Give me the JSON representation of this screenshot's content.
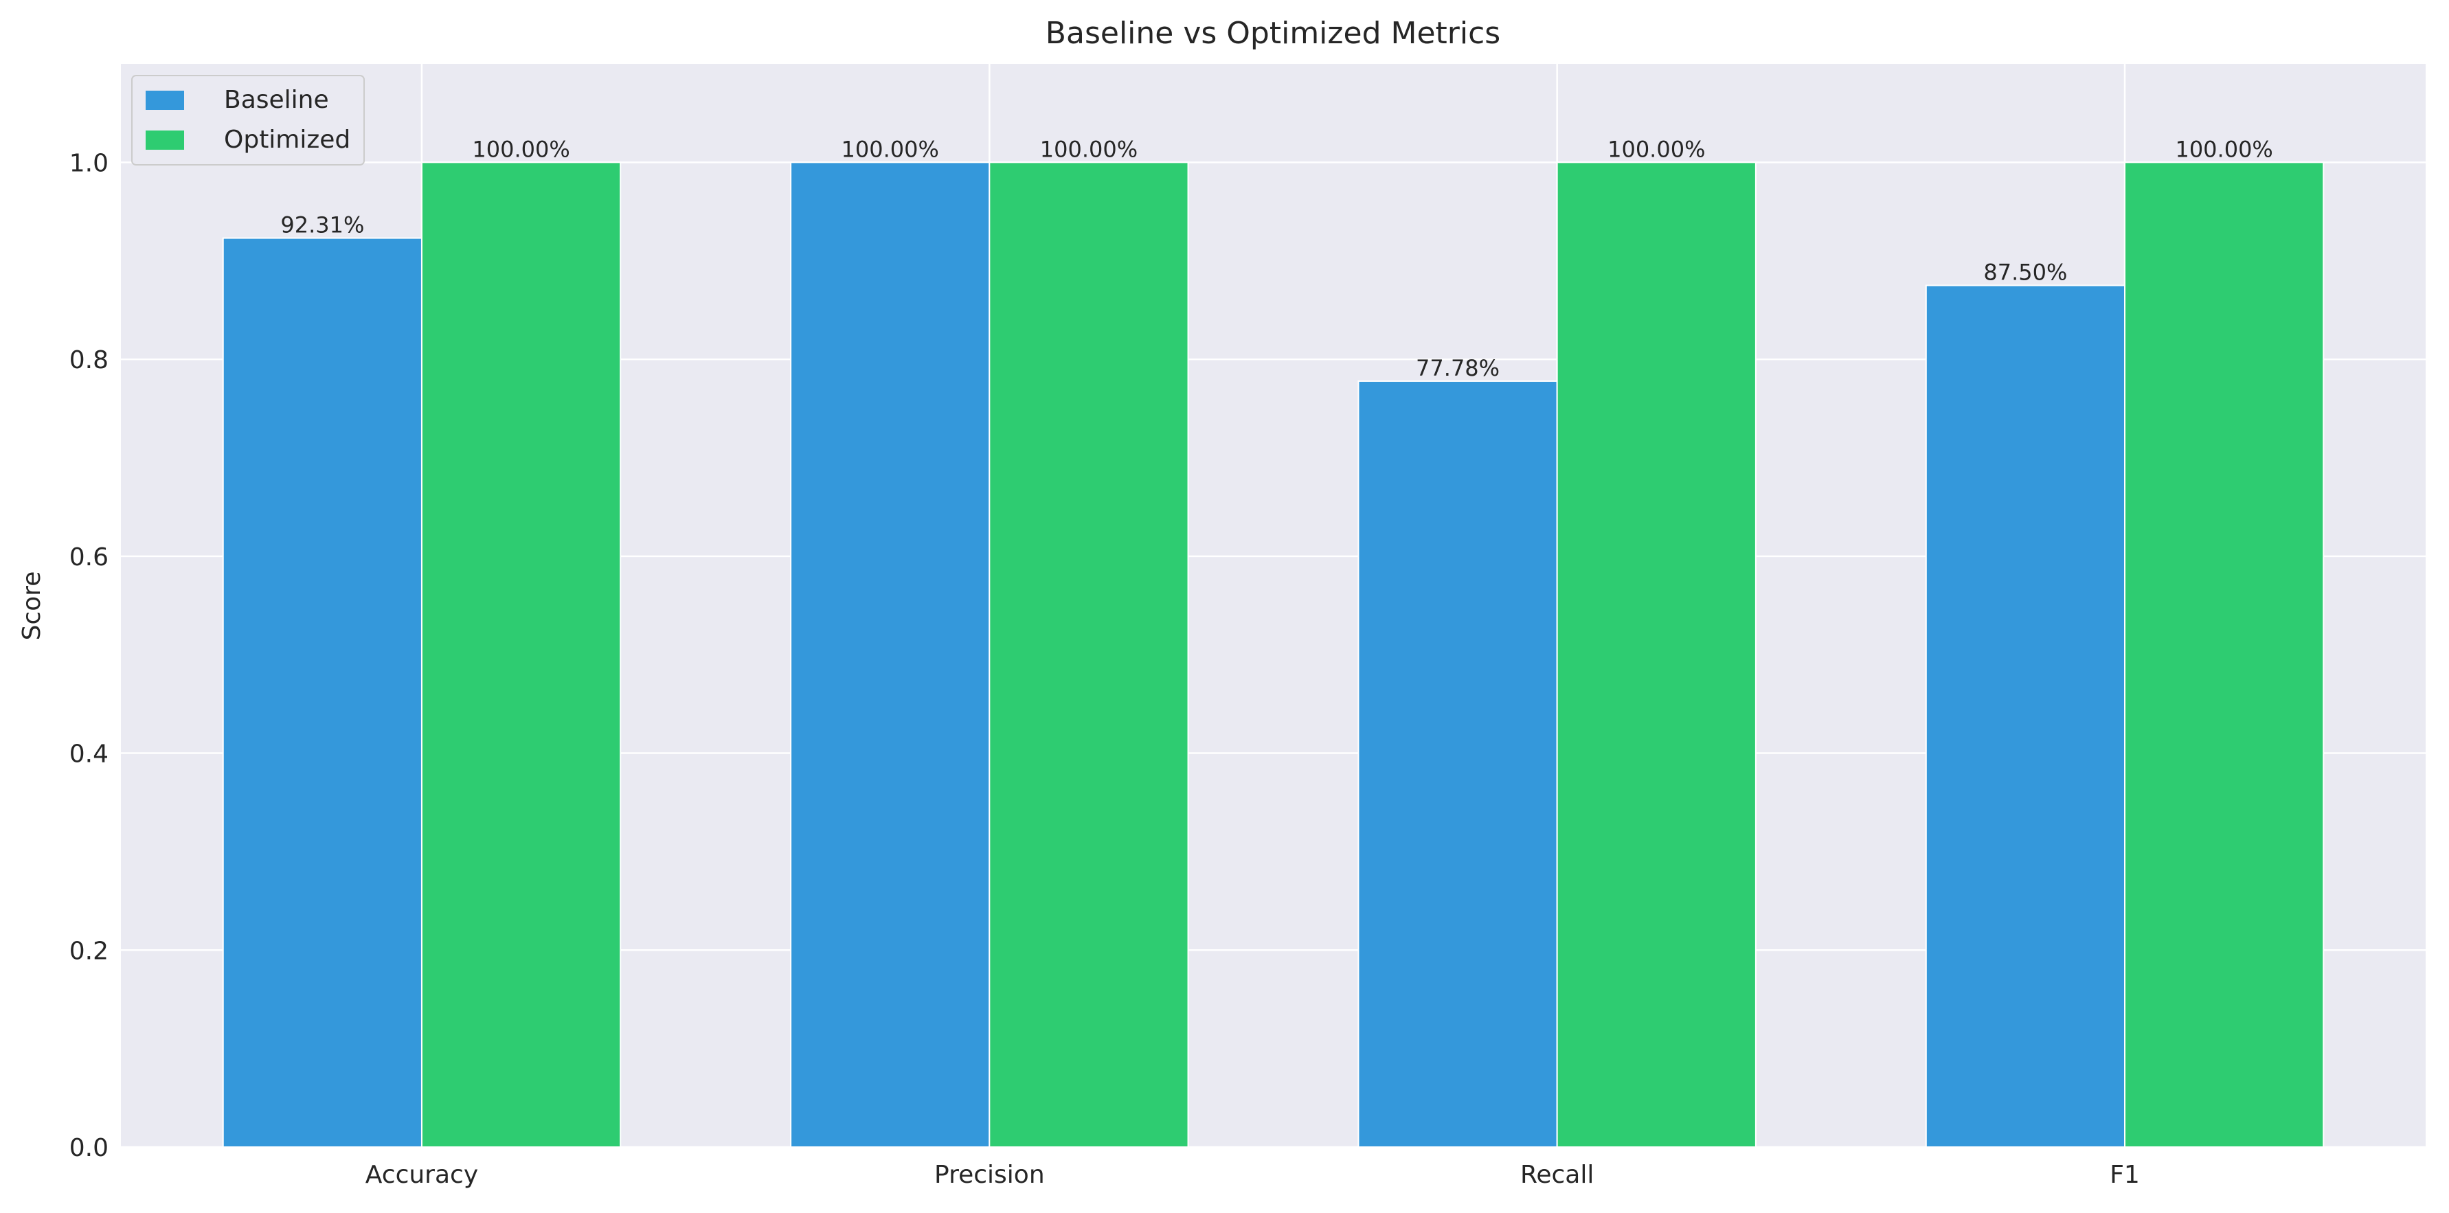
{
  "chart_data": {
    "type": "bar",
    "title": "Baseline vs Optimized Metrics",
    "xlabel": "",
    "ylabel": "Score",
    "categories": [
      "Accuracy",
      "Precision",
      "Recall",
      "F1"
    ],
    "series": [
      {
        "name": "Baseline",
        "color": "#3498db",
        "values": [
          0.9231,
          1.0,
          0.7778,
          0.875
        ],
        "labels": [
          "92.31%",
          "100.00%",
          "77.78%",
          "87.50%"
        ]
      },
      {
        "name": "Optimized",
        "color": "#2ecc71",
        "values": [
          1.0,
          1.0,
          1.0,
          1.0
        ],
        "labels": [
          "100.00%",
          "100.00%",
          "100.00%",
          "100.00%"
        ]
      }
    ],
    "ylim": [
      0,
      1.1
    ],
    "yticks": [
      0.0,
      0.2,
      0.4,
      0.6,
      0.8,
      1.0
    ],
    "ytick_labels": [
      "0.0",
      "0.2",
      "0.4",
      "0.6",
      "0.8",
      "1.0"
    ],
    "grid": true,
    "legend_position": "top-left",
    "background": "#eaeaf2"
  }
}
